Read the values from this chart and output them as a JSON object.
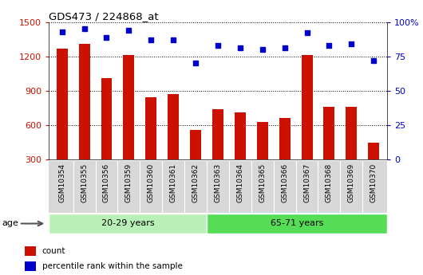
{
  "title": "GDS473 / 224868_at",
  "samples": [
    "GSM10354",
    "GSM10355",
    "GSM10356",
    "GSM10359",
    "GSM10360",
    "GSM10361",
    "GSM10362",
    "GSM10363",
    "GSM10364",
    "GSM10365",
    "GSM10366",
    "GSM10367",
    "GSM10368",
    "GSM10369",
    "GSM10370"
  ],
  "counts": [
    1270,
    1310,
    1010,
    1210,
    840,
    870,
    560,
    740,
    710,
    630,
    660,
    1210,
    760,
    760,
    450
  ],
  "percentiles": [
    93,
    95,
    89,
    94,
    87,
    87,
    70,
    83,
    81,
    80,
    81,
    92,
    83,
    84,
    72
  ],
  "groups": [
    {
      "label": "20-29 years",
      "start": 0,
      "end": 7,
      "color": "#b8f0b8"
    },
    {
      "label": "65-71 years",
      "start": 7,
      "end": 15,
      "color": "#55dd55"
    }
  ],
  "ylim_left": [
    300,
    1500
  ],
  "ylim_right": [
    0,
    100
  ],
  "yticks_left": [
    300,
    600,
    900,
    1200,
    1500
  ],
  "yticks_right": [
    0,
    25,
    50,
    75,
    100
  ],
  "ytick_labels_right": [
    "0",
    "25",
    "50",
    "75",
    "100%"
  ],
  "bar_color": "#cc1100",
  "scatter_color": "#0000cc",
  "bar_width": 0.5,
  "tick_label_color_left": "#cc1100",
  "tick_label_color_right": "#0000cc",
  "legend_items": [
    {
      "label": "count",
      "color": "#cc1100"
    },
    {
      "label": "percentile rank within the sample",
      "color": "#0000cc"
    }
  ],
  "age_label": "age",
  "xtick_bg": "#d8d8d8"
}
